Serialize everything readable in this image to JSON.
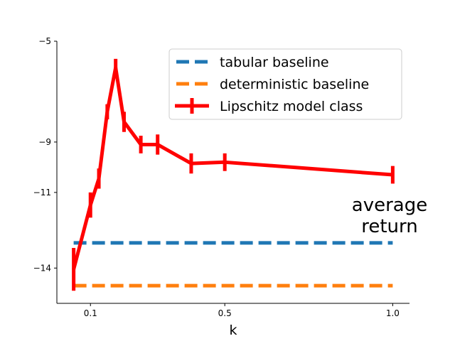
{
  "chart_data": {
    "type": "line",
    "title": "",
    "xlabel": "k",
    "ylabel": "average return",
    "xlim": [
      0.0,
      1.05
    ],
    "ylim": [
      -15.4,
      -5.0
    ],
    "xticks": [
      0.1,
      0.5,
      1.0
    ],
    "xtick_labels": [
      "0.1",
      "0.5",
      "1.0"
    ],
    "yticks": [
      -5,
      -9,
      -11,
      -14
    ],
    "ytick_labels": [
      "−5",
      "−9",
      "−11",
      "−14"
    ],
    "grid": false,
    "legend_position": "top-right",
    "series": [
      {
        "name": "tabular baseline",
        "style": "dashed",
        "color": "#1f77b4",
        "x": [
          0.05,
          1.0
        ],
        "y": [
          -13.0,
          -13.0
        ]
      },
      {
        "name": "deterministic baseline",
        "style": "dashed",
        "color": "#ff7f0e",
        "x": [
          0.05,
          1.0
        ],
        "y": [
          -14.7,
          -14.7
        ]
      },
      {
        "name": "Lipschitz model class",
        "style": "solid-errorbar",
        "color": "#ff0000",
        "x": [
          0.05,
          0.1,
          0.125,
          0.15,
          0.175,
          0.2,
          0.25,
          0.3,
          0.4,
          0.5,
          1.0
        ],
        "y": [
          -14.05,
          -11.5,
          -10.45,
          -7.8,
          -6.05,
          -8.2,
          -9.1,
          -9.1,
          -9.85,
          -9.8,
          -10.3
        ],
        "yerr": [
          0.85,
          0.5,
          0.4,
          0.3,
          0.35,
          0.4,
          0.35,
          0.4,
          0.4,
          0.35,
          0.35
        ]
      }
    ]
  }
}
